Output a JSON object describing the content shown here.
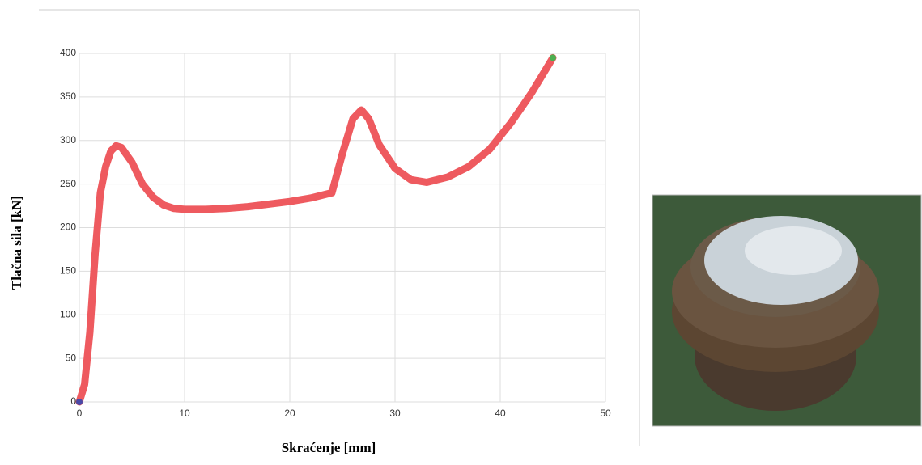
{
  "chart_data": {
    "type": "line",
    "xlabel": "Skraćenje [mm]",
    "ylabel": "Tlačna sila [kN]",
    "x": [
      0,
      0.5,
      1,
      1.5,
      2,
      2.5,
      3,
      3.5,
      4,
      5,
      6,
      7,
      8,
      9,
      10,
      12,
      14,
      16,
      18,
      20,
      22,
      24,
      25,
      26,
      26.8,
      27.5,
      28.5,
      30,
      31.5,
      33,
      35,
      37,
      39,
      41,
      43,
      45
    ],
    "values": [
      0,
      20,
      80,
      170,
      240,
      270,
      288,
      294,
      292,
      275,
      250,
      235,
      226,
      222,
      221,
      221,
      222,
      224,
      227,
      230,
      234,
      240,
      285,
      325,
      335,
      325,
      295,
      268,
      255,
      252,
      258,
      270,
      290,
      320,
      355,
      395
    ],
    "color": "#ee5a5f",
    "xlim": [
      0,
      50
    ],
    "xticks": [
      0,
      10,
      20,
      30,
      40,
      50
    ],
    "ylim": [
      0,
      400
    ],
    "yticks": [
      0,
      50,
      100,
      150,
      200,
      250,
      300,
      350,
      400
    ],
    "grid": true
  }
}
